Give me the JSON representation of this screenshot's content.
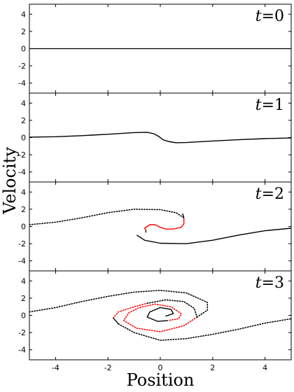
{
  "chart_data": {
    "type": "line",
    "xlabel": "Position",
    "ylabel": "Velocity",
    "xlim": [
      -5,
      5
    ],
    "ylim": [
      -5,
      5
    ],
    "x_ticks": [
      "-4",
      "-2",
      "0",
      "2",
      "4"
    ],
    "y_ticks": [
      "4",
      "2",
      "0",
      "-2",
      "-4"
    ],
    "x_tick_values": [
      -4,
      -2,
      0,
      2,
      4
    ],
    "y_tick_values": [
      4,
      2,
      0,
      -2,
      -4
    ],
    "colors": {
      "black": "#000000",
      "red": "#ff0000"
    },
    "panels": [
      {
        "label_var": "t",
        "label_eq": "=",
        "label_val": "0",
        "series": [
          {
            "style": "solid",
            "color": "#000000",
            "points": [
              [
                -5,
                0
              ],
              [
                5,
                0
              ]
            ]
          }
        ]
      },
      {
        "label_var": "t",
        "label_eq": "=",
        "label_val": "1",
        "series": [
          {
            "style": "solid",
            "color": "#000000",
            "points": [
              [
                -5,
                0.05
              ],
              [
                -4,
                0.1
              ],
              [
                -3,
                0.22
              ],
              [
                -2,
                0.38
              ],
              [
                -1,
                0.58
              ],
              [
                -0.5,
                0.6
              ],
              [
                -0.25,
                0.45
              ],
              [
                -0.1,
                0.2
              ],
              [
                0,
                0
              ],
              [
                0.1,
                -0.25
              ],
              [
                0.3,
                -0.45
              ],
              [
                0.6,
                -0.6
              ],
              [
                1,
                -0.58
              ],
              [
                2,
                -0.4
              ],
              [
                3,
                -0.25
              ],
              [
                4,
                -0.12
              ],
              [
                5,
                -0.05
              ]
            ]
          }
        ]
      },
      {
        "label_var": "t",
        "label_eq": "=",
        "label_val": "2",
        "series": [
          {
            "style": "dotted",
            "color": "#000000",
            "points": [
              [
                -5,
                0.2
              ],
              [
                -4,
                0.5
              ],
              [
                -3,
                1.0
              ],
              [
                -2,
                1.6
              ],
              [
                -1,
                2.0
              ],
              [
                0,
                1.95
              ],
              [
                0.6,
                1.6
              ],
              [
                0.9,
                1.0
              ]
            ]
          },
          {
            "style": "solid",
            "color": "#ff0000",
            "points": [
              [
                0.9,
                1.0
              ],
              [
                0.9,
                0.3
              ],
              [
                0.8,
                -0.1
              ],
              [
                0.5,
                -0.3
              ],
              [
                0.2,
                -0.3
              ],
              [
                0,
                -0.1
              ],
              [
                -0.2,
                0.2
              ],
              [
                -0.4,
                0.2
              ],
              [
                -0.6,
                -0.2
              ],
              [
                -0.55,
                -0.45
              ]
            ]
          },
          {
            "style": "solid",
            "color": "#000000",
            "points": [
              [
                -0.55,
                -0.45
              ],
              [
                -0.55,
                -0.7
              ]
            ]
          },
          {
            "style": "solid",
            "color": "#000000",
            "points": [
              [
                -0.9,
                -1.0
              ],
              [
                -0.6,
                -1.6
              ],
              [
                0,
                -1.95
              ],
              [
                1,
                -2.0
              ],
              [
                2,
                -1.6
              ],
              [
                3,
                -1.0
              ],
              [
                4,
                -0.5
              ],
              [
                5,
                -0.2
              ]
            ]
          },
          {
            "style": "solid",
            "color": "#000000",
            "points": [
              [
                0.9,
                1.0
              ],
              [
                0.85,
                1.5
              ]
            ]
          }
        ]
      },
      {
        "label_var": "t",
        "label_eq": "=",
        "label_val": "3",
        "series": [
          {
            "style": "dotted",
            "color": "#000000",
            "points": [
              [
                -5,
                0.4
              ],
              [
                -4,
                0.9
              ],
              [
                -3,
                1.6
              ],
              [
                -2,
                2.2
              ],
              [
                -1,
                2.7
              ],
              [
                0,
                2.9
              ],
              [
                1,
                2.6
              ],
              [
                1.8,
                1.5
              ],
              [
                1.8,
                0.6
              ],
              [
                1.4,
                -0.2
              ]
            ]
          },
          {
            "style": "dotted",
            "color": "#ff0000",
            "points": [
              [
                -1.8,
                -0.3
              ],
              [
                -1.6,
                0.4
              ],
              [
                -1,
                1.0
              ],
              [
                -0.5,
                1.4
              ]
            ]
          },
          {
            "style": "solid",
            "color": "#000000",
            "points": [
              [
                -1.8,
                -0.3
              ],
              [
                -1.6,
                -1.0
              ]
            ]
          },
          {
            "style": "dotted",
            "color": "#000000",
            "points": [
              [
                -1.6,
                -1.0
              ],
              [
                -1,
                -2.0
              ],
              [
                0,
                -2.9
              ],
              [
                1,
                -2.7
              ],
              [
                2,
                -2.2
              ],
              [
                3,
                -1.6
              ],
              [
                4,
                -0.9
              ],
              [
                5,
                -0.4
              ]
            ]
          },
          {
            "style": "dotted",
            "color": "#ff0000",
            "points": [
              [
                1.4,
                -0.2
              ],
              [
                0.9,
                -1.2
              ],
              [
                0,
                -1.9
              ],
              [
                -0.9,
                -1.5
              ],
              [
                -1.4,
                -0.6
              ],
              [
                -1.2,
                0.3
              ],
              [
                -0.8,
                0.9
              ],
              [
                -0.2,
                1.3
              ],
              [
                0.4,
                1.0
              ],
              [
                0.8,
                0.2
              ],
              [
                0.7,
                -0.4
              ],
              [
                0.3,
                -0.6
              ]
            ]
          },
          {
            "style": "dotted",
            "color": "#000000",
            "points": [
              [
                -0.5,
                1.4
              ],
              [
                0.2,
                1.8
              ],
              [
                0.9,
                1.6
              ],
              [
                1.3,
                0.8
              ],
              [
                1.4,
                -0.2
              ]
            ]
          },
          {
            "style": "solid",
            "color": "#000000",
            "points": [
              [
                0.3,
                -0.6
              ],
              [
                -0.1,
                -0.7
              ],
              [
                -0.5,
                -0.2
              ],
              [
                -0.4,
                0.4
              ],
              [
                0,
                0.9
              ],
              [
                0.4,
                0.7
              ],
              [
                0.5,
                0.2
              ],
              [
                0.2,
                -0.1
              ]
            ]
          }
        ]
      }
    ]
  }
}
